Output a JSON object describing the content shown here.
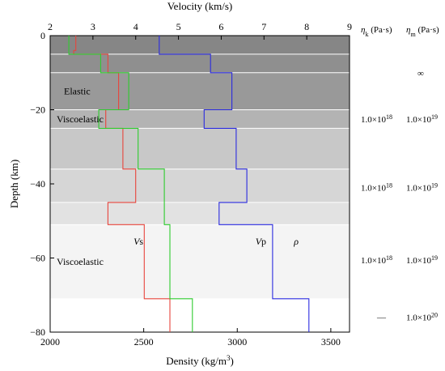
{
  "chart_data": {
    "type": "line",
    "top_axis": {
      "label": "Velocity (km/s)",
      "range": [
        2,
        9
      ],
      "ticks": [
        2,
        3,
        4,
        5,
        6,
        7,
        8,
        9
      ]
    },
    "bottom_axis": {
      "label": "Density (kg/m",
      "label_sup": "3",
      "label_end": ")",
      "range": [
        2000,
        3600
      ],
      "ticks": [
        2000,
        2500,
        3000,
        3500
      ]
    },
    "left_axis": {
      "label": "Depth (km)",
      "range": [
        -80,
        0
      ],
      "ticks": [
        0,
        -20,
        -40,
        -60,
        -80
      ]
    },
    "layers": [
      {
        "top": 0,
        "bottom": -5,
        "fill": "#868686"
      },
      {
        "top": -5,
        "bottom": -10,
        "fill": "#8f8f8f"
      },
      {
        "top": -10,
        "bottom": -20,
        "fill": "#999999"
      },
      {
        "top": -20,
        "bottom": -25,
        "fill": "#b3b3b3"
      },
      {
        "top": -25,
        "bottom": -36,
        "fill": "#c8c8c8"
      },
      {
        "top": -36,
        "bottom": -45,
        "fill": "#d6d6d6"
      },
      {
        "top": -45,
        "bottom": -51,
        "fill": "#e2e2e2"
      },
      {
        "top": -51,
        "bottom": -71,
        "fill": "#f4f4f4"
      },
      {
        "top": -71,
        "bottom": -80,
        "fill": "#ffffff"
      }
    ],
    "layer_labels": [
      {
        "text": "Elastic",
        "depth": -15
      },
      {
        "text": "Viscoelastic",
        "depth": -22.5
      },
      {
        "text": "Viscoelastic",
        "depth": -61
      }
    ],
    "series": [
      {
        "name": "Vs",
        "axis": "velocity",
        "color": "#e8453c",
        "profile": [
          [
            2.6,
            0
          ],
          [
            2.6,
            -4
          ],
          [
            2.55,
            -4
          ],
          [
            2.55,
            -5
          ],
          [
            3.35,
            -5
          ],
          [
            3.35,
            -10
          ],
          [
            3.6,
            -10
          ],
          [
            3.6,
            -20
          ],
          [
            3.3,
            -20
          ],
          [
            3.3,
            -25
          ],
          [
            3.7,
            -25
          ],
          [
            3.7,
            -36
          ],
          [
            4.0,
            -36
          ],
          [
            4.0,
            -45
          ],
          [
            3.35,
            -45
          ],
          [
            3.35,
            -51
          ],
          [
            4.2,
            -51
          ],
          [
            4.2,
            -71
          ],
          [
            4.8,
            -71
          ],
          [
            4.8,
            -80
          ]
        ]
      },
      {
        "name": "Vp",
        "axis": "velocity",
        "color": "#2b2be0",
        "profile": [
          [
            4.55,
            0
          ],
          [
            4.55,
            -5
          ],
          [
            5.75,
            -5
          ],
          [
            5.75,
            -10
          ],
          [
            6.25,
            -10
          ],
          [
            6.25,
            -20
          ],
          [
            5.6,
            -20
          ],
          [
            5.6,
            -25
          ],
          [
            6.35,
            -25
          ],
          [
            6.35,
            -36
          ],
          [
            6.6,
            -36
          ],
          [
            6.6,
            -45
          ],
          [
            5.95,
            -45
          ],
          [
            5.95,
            -51
          ],
          [
            7.2,
            -51
          ],
          [
            7.2,
            -71
          ],
          [
            8.05,
            -71
          ],
          [
            8.05,
            -80
          ]
        ]
      },
      {
        "name": "ρ",
        "axis": "density",
        "color": "#2ecc2e",
        "profile": [
          [
            2100,
            0
          ],
          [
            2100,
            -5
          ],
          [
            2270,
            -5
          ],
          [
            2270,
            -10
          ],
          [
            2420,
            -10
          ],
          [
            2420,
            -20
          ],
          [
            2260,
            -20
          ],
          [
            2260,
            -25
          ],
          [
            2470,
            -25
          ],
          [
            2470,
            -36
          ],
          [
            2610,
            -36
          ],
          [
            2610,
            -45
          ],
          [
            2610,
            -51
          ],
          [
            2640,
            -51
          ],
          [
            2640,
            -71
          ],
          [
            2760,
            -71
          ],
          [
            2760,
            -80
          ]
        ]
      }
    ],
    "series_labels": [
      {
        "prefix": "V",
        "suffix": "s",
        "depth": -55.5,
        "velocity": 3.95
      },
      {
        "prefix": "V",
        "suffix": "p",
        "depth": -55.5,
        "velocity": 6.8
      },
      {
        "prefix": "ρ",
        "suffix": "",
        "depth": -55.5,
        "velocity": 7.7
      }
    ],
    "viscosity": {
      "header": [
        {
          "sym": "η",
          "sub": "k",
          "unit": " (Pa·s)"
        },
        {
          "sym": "η",
          "sub": "m",
          "unit": " (Pa·s)"
        }
      ],
      "rows": [
        {
          "depth": -10,
          "k": "",
          "m": "∞"
        },
        {
          "depth": -22.5,
          "k": "1.0×10",
          "k_exp": "18",
          "m": "1.0×10",
          "m_exp": "19"
        },
        {
          "depth": -41,
          "k": "1.0×10",
          "k_exp": "18",
          "m": "1.0×10",
          "m_exp": "19"
        },
        {
          "depth": -60.5,
          "k": "1.0×10",
          "k_exp": "18",
          "m": "1.0×10",
          "m_exp": "19"
        },
        {
          "depth": -76,
          "k": "—",
          "k_exp": "",
          "m": "1.0×10",
          "m_exp": "20"
        }
      ]
    }
  }
}
